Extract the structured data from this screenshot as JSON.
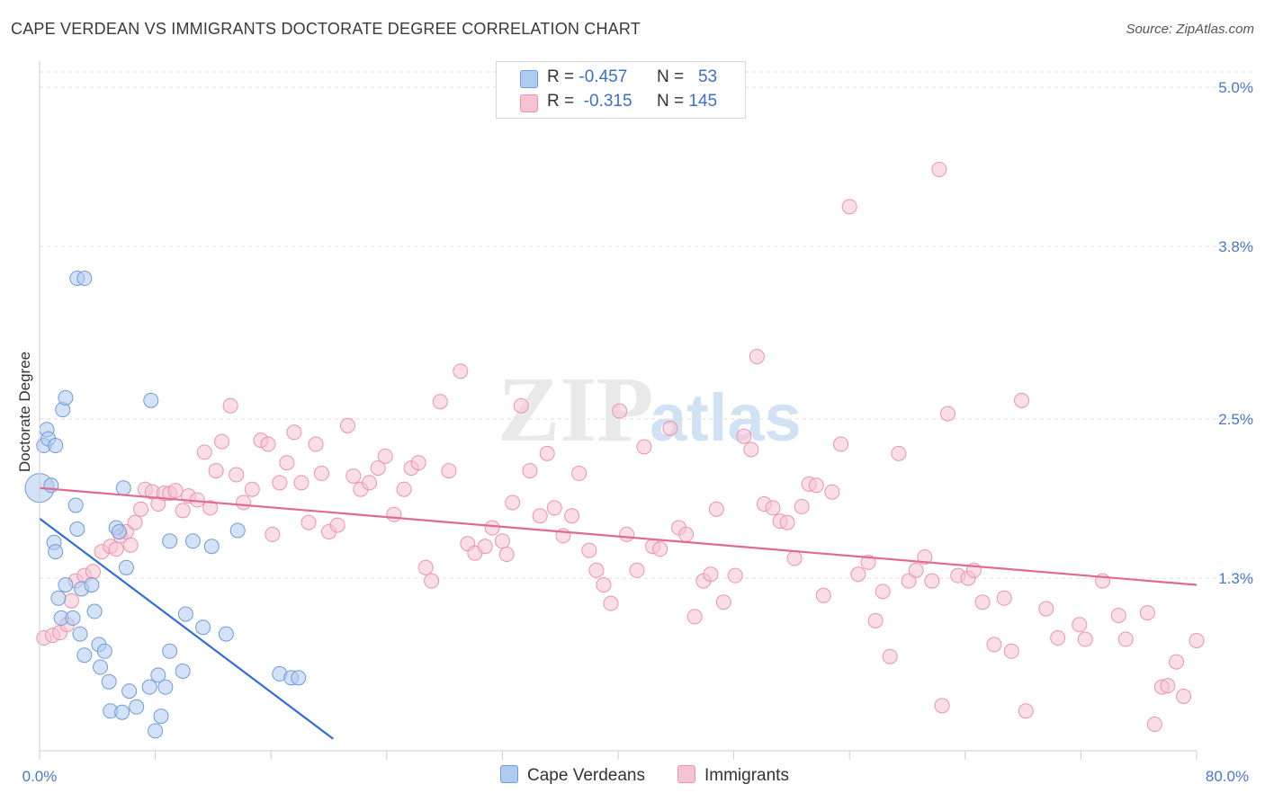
{
  "title": "CAPE VERDEAN VS IMMIGRANTS DOCTORATE DEGREE CORRELATION CHART",
  "source": "Source: ZipAtlas.com",
  "colors": {
    "blue_fill": "#aecbf0",
    "blue_stroke": "#6f9bd6",
    "blue_line": "#2e6fcf",
    "pink_fill": "#f6c3d2",
    "pink_stroke": "#ec93ae",
    "pink_line": "#e06a93",
    "tick": "#4a78c4",
    "grid": "#dddddd"
  },
  "legend": {
    "rows": [
      {
        "r_label": "R =",
        "r_value": "-0.457",
        "n_label": "N =",
        "n_value": "53"
      },
      {
        "r_label": "R =",
        "r_value": "-0.315",
        "n_label": "N =",
        "n_value": "145"
      }
    ]
  },
  "bottom_legend": [
    "Cape Verdeans",
    "Immigrants"
  ],
  "chart_data": {
    "type": "scatter",
    "title": "CAPE VERDEAN VS IMMIGRANTS DOCTORATE DEGREE CORRELATION CHART",
    "xlabel": "",
    "ylabel": "Doctorate Degree",
    "xlim": [
      0,
      80
    ],
    "ylim": [
      0,
      5.0
    ],
    "x_tick_labels": [
      "0.0%",
      "80.0%"
    ],
    "y_ticks": [
      1.3,
      2.5,
      3.8,
      5.0
    ],
    "y_tick_labels": [
      "1.3%",
      "2.5%",
      "3.8%",
      "5.0%"
    ],
    "grid": true,
    "legend_position": "top-center",
    "watermark": "ZIPatlas",
    "series": [
      {
        "name": "Cape Verdeans",
        "color": "#6f9bd6",
        "trend": {
          "x": [
            0,
            20.3
          ],
          "y": [
            1.75,
            0.09
          ]
        },
        "points": [
          [
            0.0,
            1.98
          ],
          [
            0.3,
            2.3
          ],
          [
            0.5,
            2.42
          ],
          [
            0.6,
            2.35
          ],
          [
            1.1,
            2.3
          ],
          [
            1.6,
            2.57
          ],
          [
            1.8,
            2.66
          ],
          [
            2.5,
            1.85
          ],
          [
            2.6,
            3.56
          ],
          [
            3.1,
            3.56
          ],
          [
            0.8,
            2.0
          ],
          [
            1.0,
            1.57
          ],
          [
            1.1,
            1.5
          ],
          [
            1.3,
            1.15
          ],
          [
            1.5,
            1.0
          ],
          [
            1.8,
            1.25
          ],
          [
            2.3,
            1.0
          ],
          [
            2.6,
            1.67
          ],
          [
            2.8,
            0.88
          ],
          [
            2.9,
            1.22
          ],
          [
            3.1,
            0.72
          ],
          [
            3.6,
            1.25
          ],
          [
            3.8,
            1.05
          ],
          [
            4.1,
            0.8
          ],
          [
            4.2,
            0.63
          ],
          [
            4.5,
            0.75
          ],
          [
            4.8,
            0.52
          ],
          [
            4.9,
            0.3
          ],
          [
            5.3,
            1.68
          ],
          [
            5.5,
            1.65
          ],
          [
            5.7,
            0.29
          ],
          [
            5.8,
            1.98
          ],
          [
            6.0,
            1.38
          ],
          [
            6.2,
            0.45
          ],
          [
            6.7,
            0.33
          ],
          [
            7.6,
            0.48
          ],
          [
            7.7,
            2.64
          ],
          [
            8.0,
            0.15
          ],
          [
            8.2,
            0.57
          ],
          [
            8.4,
            0.26
          ],
          [
            8.7,
            0.48
          ],
          [
            9.0,
            1.58
          ],
          [
            9.0,
            0.75
          ],
          [
            9.9,
            0.6
          ],
          [
            10.1,
            1.03
          ],
          [
            10.6,
            1.58
          ],
          [
            11.3,
            0.93
          ],
          [
            11.9,
            1.54
          ],
          [
            12.9,
            0.88
          ],
          [
            13.7,
            1.66
          ],
          [
            16.6,
            0.58
          ],
          [
            17.4,
            0.55
          ],
          [
            17.9,
            0.55
          ]
        ]
      },
      {
        "name": "Immigrants",
        "color": "#ec93ae",
        "trend": {
          "x": [
            0,
            80
          ],
          "y": [
            1.98,
            1.25
          ]
        },
        "points": [
          [
            0.3,
            0.85
          ],
          [
            0.9,
            0.87
          ],
          [
            1.4,
            0.89
          ],
          [
            1.9,
            0.95
          ],
          [
            2.2,
            1.13
          ],
          [
            2.5,
            1.28
          ],
          [
            3.1,
            1.32
          ],
          [
            3.7,
            1.35
          ],
          [
            4.3,
            1.5
          ],
          [
            4.9,
            1.54
          ],
          [
            5.3,
            1.52
          ],
          [
            5.6,
            1.62
          ],
          [
            6.0,
            1.65
          ],
          [
            6.3,
            1.55
          ],
          [
            6.6,
            1.72
          ],
          [
            7.0,
            1.82
          ],
          [
            7.3,
            1.97
          ],
          [
            7.8,
            1.95
          ],
          [
            8.2,
            1.86
          ],
          [
            8.6,
            1.94
          ],
          [
            9.0,
            1.94
          ],
          [
            9.4,
            1.96
          ],
          [
            9.9,
            1.81
          ],
          [
            10.3,
            1.92
          ],
          [
            10.9,
            1.89
          ],
          [
            11.4,
            2.25
          ],
          [
            11.8,
            1.83
          ],
          [
            12.2,
            2.11
          ],
          [
            12.6,
            2.33
          ],
          [
            13.2,
            2.6
          ],
          [
            13.6,
            2.08
          ],
          [
            14.1,
            1.87
          ],
          [
            14.7,
            1.97
          ],
          [
            15.3,
            2.34
          ],
          [
            15.8,
            2.31
          ],
          [
            16.1,
            1.63
          ],
          [
            16.6,
            2.02
          ],
          [
            17.1,
            2.17
          ],
          [
            17.6,
            2.4
          ],
          [
            18.1,
            2.02
          ],
          [
            18.6,
            1.72
          ],
          [
            19.1,
            2.31
          ],
          [
            19.5,
            2.09
          ],
          [
            20.0,
            1.65
          ],
          [
            20.6,
            1.7
          ],
          [
            21.3,
            2.45
          ],
          [
            21.7,
            2.07
          ],
          [
            22.2,
            1.97
          ],
          [
            22.8,
            2.02
          ],
          [
            23.4,
            2.13
          ],
          [
            23.9,
            2.22
          ],
          [
            24.5,
            1.78
          ],
          [
            25.2,
            1.97
          ],
          [
            25.7,
            2.13
          ],
          [
            26.2,
            2.17
          ],
          [
            26.7,
            1.38
          ],
          [
            27.1,
            1.28
          ],
          [
            27.7,
            2.63
          ],
          [
            28.3,
            2.11
          ],
          [
            29.1,
            2.86
          ],
          [
            29.6,
            1.56
          ],
          [
            30.1,
            1.49
          ],
          [
            30.8,
            1.54
          ],
          [
            31.3,
            1.68
          ],
          [
            32.0,
            1.58
          ],
          [
            32.3,
            1.48
          ],
          [
            32.7,
            1.87
          ],
          [
            33.3,
            2.6
          ],
          [
            33.9,
            2.11
          ],
          [
            34.6,
            1.77
          ],
          [
            35.1,
            2.24
          ],
          [
            35.6,
            1.83
          ],
          [
            36.2,
            1.62
          ],
          [
            36.8,
            1.77
          ],
          [
            37.3,
            2.09
          ],
          [
            38.0,
            1.51
          ],
          [
            38.5,
            1.36
          ],
          [
            39.0,
            1.25
          ],
          [
            39.5,
            1.11
          ],
          [
            40.1,
            2.56
          ],
          [
            40.6,
            1.63
          ],
          [
            41.3,
            1.36
          ],
          [
            41.8,
            2.29
          ],
          [
            42.4,
            1.54
          ],
          [
            42.9,
            1.52
          ],
          [
            43.6,
            2.43
          ],
          [
            44.2,
            1.68
          ],
          [
            44.7,
            1.63
          ],
          [
            45.3,
            1.01
          ],
          [
            45.9,
            1.28
          ],
          [
            46.4,
            1.33
          ],
          [
            46.8,
            1.82
          ],
          [
            47.3,
            1.12
          ],
          [
            48.1,
            1.32
          ],
          [
            48.7,
            2.37
          ],
          [
            49.2,
            2.27
          ],
          [
            49.6,
            2.97
          ],
          [
            50.1,
            1.86
          ],
          [
            50.7,
            1.83
          ],
          [
            51.2,
            1.73
          ],
          [
            51.7,
            1.72
          ],
          [
            52.2,
            1.45
          ],
          [
            52.7,
            1.84
          ],
          [
            53.2,
            2.01
          ],
          [
            53.7,
            2.0
          ],
          [
            54.2,
            1.17
          ],
          [
            54.8,
            1.95
          ],
          [
            55.4,
            2.31
          ],
          [
            56.0,
            4.1
          ],
          [
            56.6,
            1.33
          ],
          [
            57.3,
            1.42
          ],
          [
            57.8,
            0.98
          ],
          [
            58.3,
            1.2
          ],
          [
            58.8,
            0.71
          ],
          [
            59.4,
            2.24
          ],
          [
            60.1,
            1.28
          ],
          [
            60.6,
            1.36
          ],
          [
            61.2,
            1.46
          ],
          [
            61.7,
            1.28
          ],
          [
            62.2,
            4.38
          ],
          [
            62.4,
            0.34
          ],
          [
            62.8,
            2.54
          ],
          [
            63.5,
            1.32
          ],
          [
            64.2,
            1.3
          ],
          [
            64.6,
            1.36
          ],
          [
            65.2,
            1.12
          ],
          [
            66.0,
            0.8
          ],
          [
            66.7,
            1.15
          ],
          [
            67.2,
            0.75
          ],
          [
            67.9,
            2.64
          ],
          [
            68.2,
            0.3
          ],
          [
            69.6,
            1.07
          ],
          [
            70.4,
            0.85
          ],
          [
            71.9,
            0.95
          ],
          [
            72.3,
            0.84
          ],
          [
            73.5,
            1.28
          ],
          [
            74.6,
            1.02
          ],
          [
            75.1,
            0.84
          ],
          [
            76.6,
            1.04
          ],
          [
            77.1,
            0.2
          ],
          [
            77.6,
            0.48
          ],
          [
            78.0,
            0.49
          ],
          [
            78.6,
            0.67
          ],
          [
            79.1,
            0.41
          ],
          [
            80.0,
            0.83
          ]
        ]
      }
    ]
  }
}
